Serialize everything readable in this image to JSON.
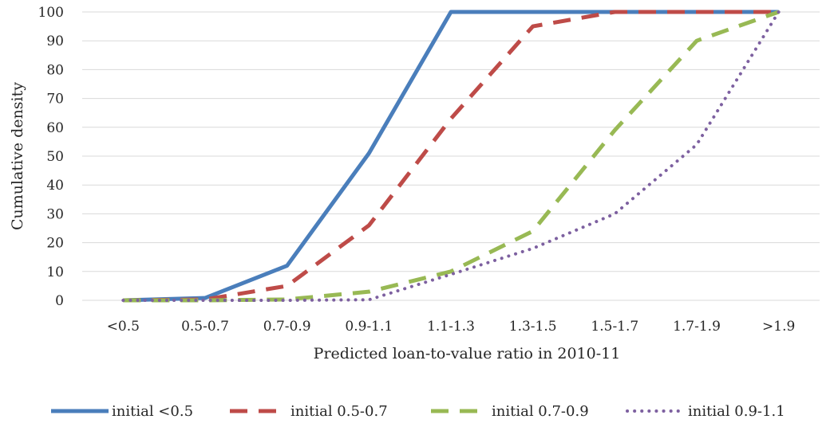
{
  "chart_data": {
    "type": "line",
    "title": "",
    "xlabel": "Predicted loan-to-value ratio in 2010-11",
    "ylabel": "Cumulative density",
    "ylim": [
      0,
      100
    ],
    "yticks": [
      "0",
      "10",
      "20",
      "30",
      "40",
      "50",
      "60",
      "70",
      "80",
      "90",
      "100"
    ],
    "categories": [
      "<0.5",
      "0.5-0.7",
      "0.7-0.9",
      "0.9-1.1",
      "1.1-1.3",
      "1.3-1.5",
      "1.5-1.7",
      "1.7-1.9",
      ">1.9"
    ],
    "grid": true,
    "legend_position": "bottom",
    "series": [
      {
        "name": "initial <0.5",
        "values": [
          0,
          0.8,
          12,
          51,
          100,
          100,
          100,
          100,
          100
        ],
        "color": "#4a7ebb",
        "dash": "solid"
      },
      {
        "name": "initial 0.5-0.7",
        "values": [
          0,
          0.3,
          5,
          26,
          63,
          95,
          100,
          100,
          100
        ],
        "color": "#be4b48",
        "dash": "dashed"
      },
      {
        "name": "initial 0.7-0.9",
        "values": [
          0,
          0,
          0.3,
          3,
          10,
          24,
          59,
          90,
          100
        ],
        "color": "#98b954",
        "dash": "dashed"
      },
      {
        "name": "initial 0.9-1.1",
        "values": [
          0,
          0,
          0,
          0.2,
          9,
          18,
          30,
          54,
          100
        ],
        "color": "#7d60a0",
        "dash": "dotted"
      }
    ]
  }
}
